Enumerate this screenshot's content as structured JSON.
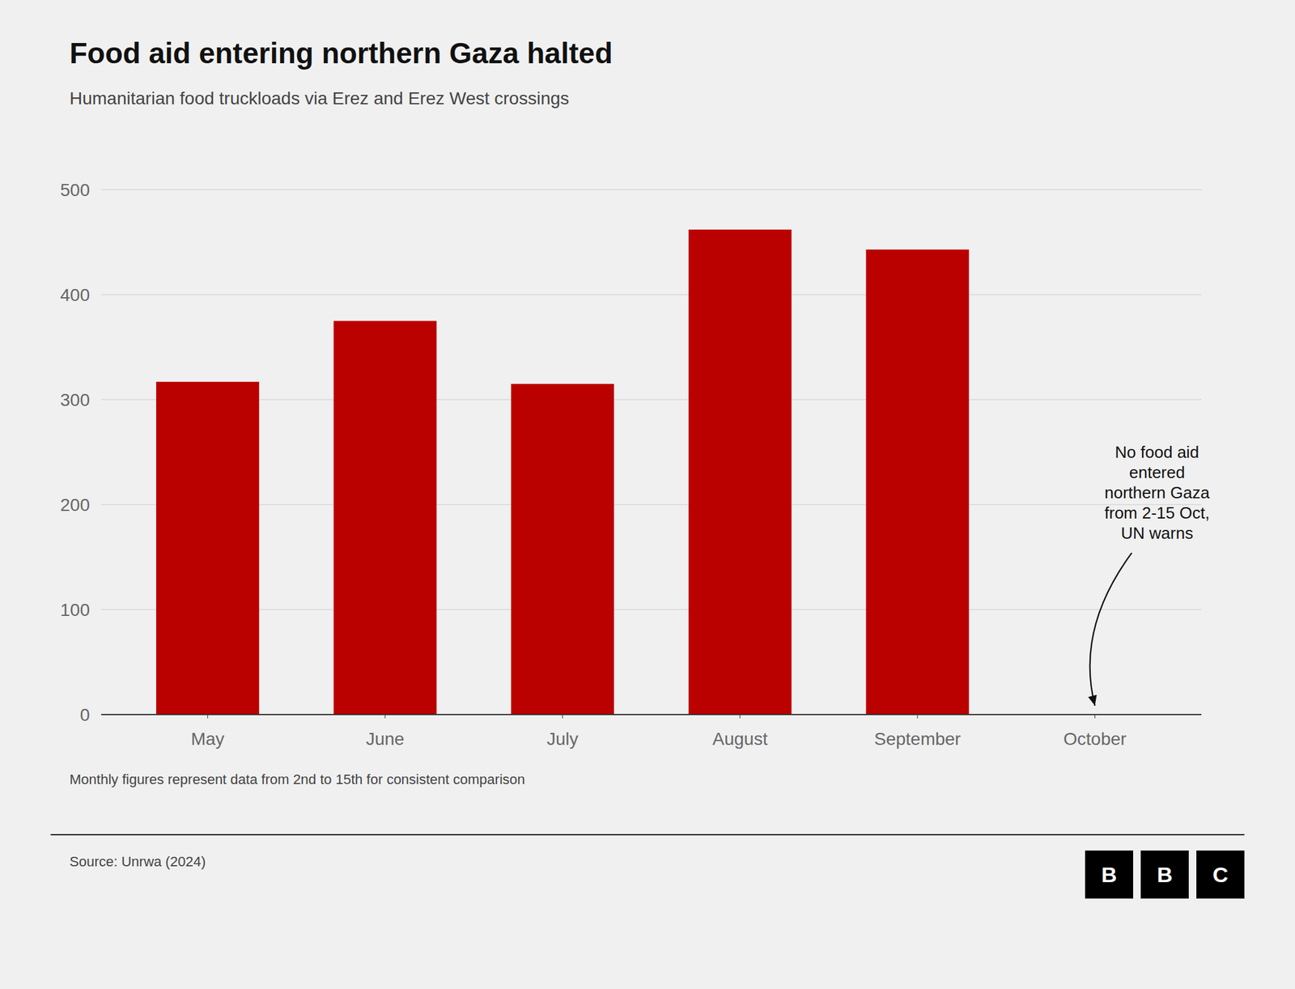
{
  "chart_data": {
    "type": "bar",
    "title": "Food aid entering northern Gaza halted",
    "subtitle": "Humanitarian food truckloads via Erez and Erez West crossings",
    "categories": [
      "May",
      "June",
      "July",
      "August",
      "September",
      "October"
    ],
    "values": [
      317,
      375,
      315,
      462,
      443,
      0
    ],
    "color": "#BB0000",
    "ylim": [
      0,
      500
    ],
    "yticks": [
      0,
      100,
      200,
      300,
      400,
      500
    ],
    "grid": true,
    "annotations": [
      {
        "text": "No food aid\nentered\nnorthern Gaza\nfrom 2-15 Oct,\nUN warns",
        "x": "October"
      }
    ],
    "footer_note": "Monthly figures represent data from 2nd to 15th for consistent comparison",
    "source": "Source: Unrwa (2024)",
    "logo": [
      "B",
      "B",
      "C"
    ]
  }
}
